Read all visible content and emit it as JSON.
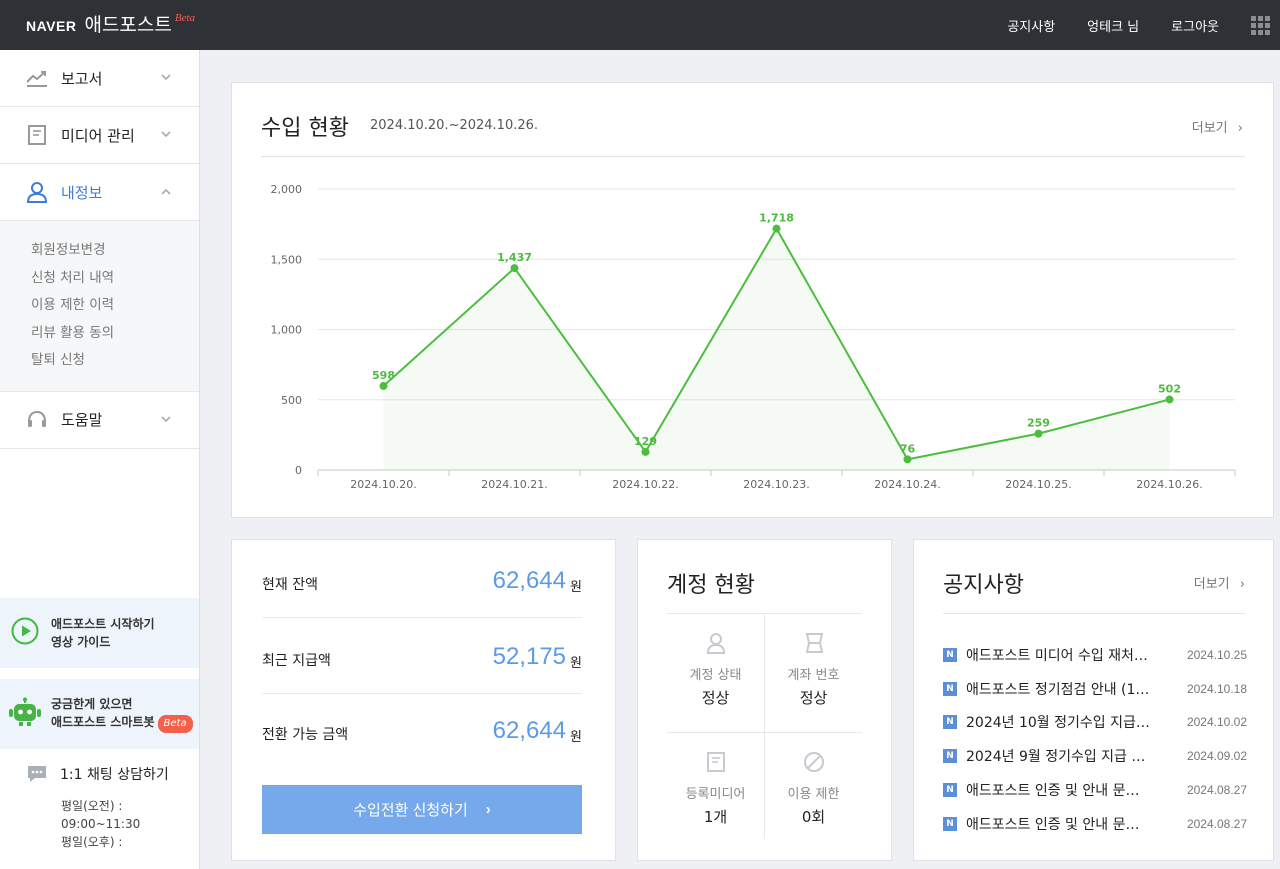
{
  "header": {
    "logo_naver": "NAVER",
    "logo_service": "애드포스트",
    "logo_beta": "Beta",
    "nav": [
      "공지사항",
      "엉테크 님",
      "로그아웃"
    ]
  },
  "sidebar": {
    "menu": [
      {
        "label": "보고서",
        "icon": "chart-line-icon"
      },
      {
        "label": "미디어 관리",
        "icon": "document-icon"
      },
      {
        "label": "내정보",
        "icon": "user-icon"
      }
    ],
    "submenu": [
      "회원정보변경",
      "신청 처리 내역",
      "이용 제한 이력",
      "리뷰 활용 동의",
      "탈퇴 신청"
    ],
    "help": {
      "label": "도움말",
      "icon": "headset-icon"
    },
    "guide": {
      "line1": "애드포스트 시작하기",
      "line2": "영상 가이드"
    },
    "bot": {
      "line1": "궁금한게 있으면",
      "line2": "애드포스트 스마트봇",
      "badge": "Beta"
    },
    "chat": {
      "title": "1:1 채팅 상담하기",
      "hours": [
        "평일(오전) :",
        "09:00~11:30",
        "평일(오후) :"
      ]
    }
  },
  "revenue": {
    "title": "수입 현황",
    "period": "2024.10.20.~2024.10.26.",
    "more": "더보기"
  },
  "chart_data": {
    "type": "area",
    "categories": [
      "2024.10.20.",
      "2024.10.21.",
      "2024.10.22.",
      "2024.10.23.",
      "2024.10.24.",
      "2024.10.25.",
      "2024.10.26."
    ],
    "values": [
      598,
      1437,
      129,
      1718,
      76,
      259,
      502
    ],
    "value_labels": [
      "598",
      "1,437",
      "129",
      "1,718",
      "76",
      "259",
      "502"
    ],
    "yticks": [
      0,
      500,
      1000,
      1500,
      2000
    ],
    "ytick_labels": [
      "0",
      "500",
      "1,000",
      "1,500",
      "2,000"
    ],
    "ylim": [
      0,
      2000
    ],
    "grid": true,
    "color": "#4dbd3f",
    "title": "",
    "xlabel": "",
    "ylabel": ""
  },
  "balance": {
    "rows": [
      {
        "label": "현재 잔액",
        "value": "62,644",
        "unit": "원"
      },
      {
        "label": "최근 지급액",
        "value": "52,175",
        "unit": "원"
      },
      {
        "label": "전환 가능 금액",
        "value": "62,644",
        "unit": "원"
      }
    ],
    "button": "수입전환 신청하기"
  },
  "account": {
    "title": "계정 현황",
    "items": [
      {
        "label": "계정 상태",
        "value": "정상",
        "icon": "user-outline-icon"
      },
      {
        "label": "계좌 번호",
        "value": "정상",
        "icon": "bankbook-icon"
      },
      {
        "label": "등록미디어",
        "value": "1개",
        "icon": "document-outline-icon"
      },
      {
        "label": "이용 제한",
        "value": "0회",
        "icon": "prohibited-icon"
      }
    ]
  },
  "notice": {
    "title": "공지사항",
    "more": "더보기",
    "badge": "N",
    "items": [
      {
        "title": "애드포스트 미디어 수입 재처…",
        "date": "2024.10.25"
      },
      {
        "title": "애드포스트 정기점검 안내 (1…",
        "date": "2024.10.18"
      },
      {
        "title": "2024년 10월 정기수입 지급 …",
        "date": "2024.10.02"
      },
      {
        "title": "2024년 9월 정기수입 지급 일…",
        "date": "2024.09.02"
      },
      {
        "title": "애드포스트 인증 및 안내 문자 …",
        "date": "2024.08.27"
      },
      {
        "title": "애드포스트 인증 및 안내 문자 …",
        "date": "2024.08.27"
      }
    ]
  }
}
